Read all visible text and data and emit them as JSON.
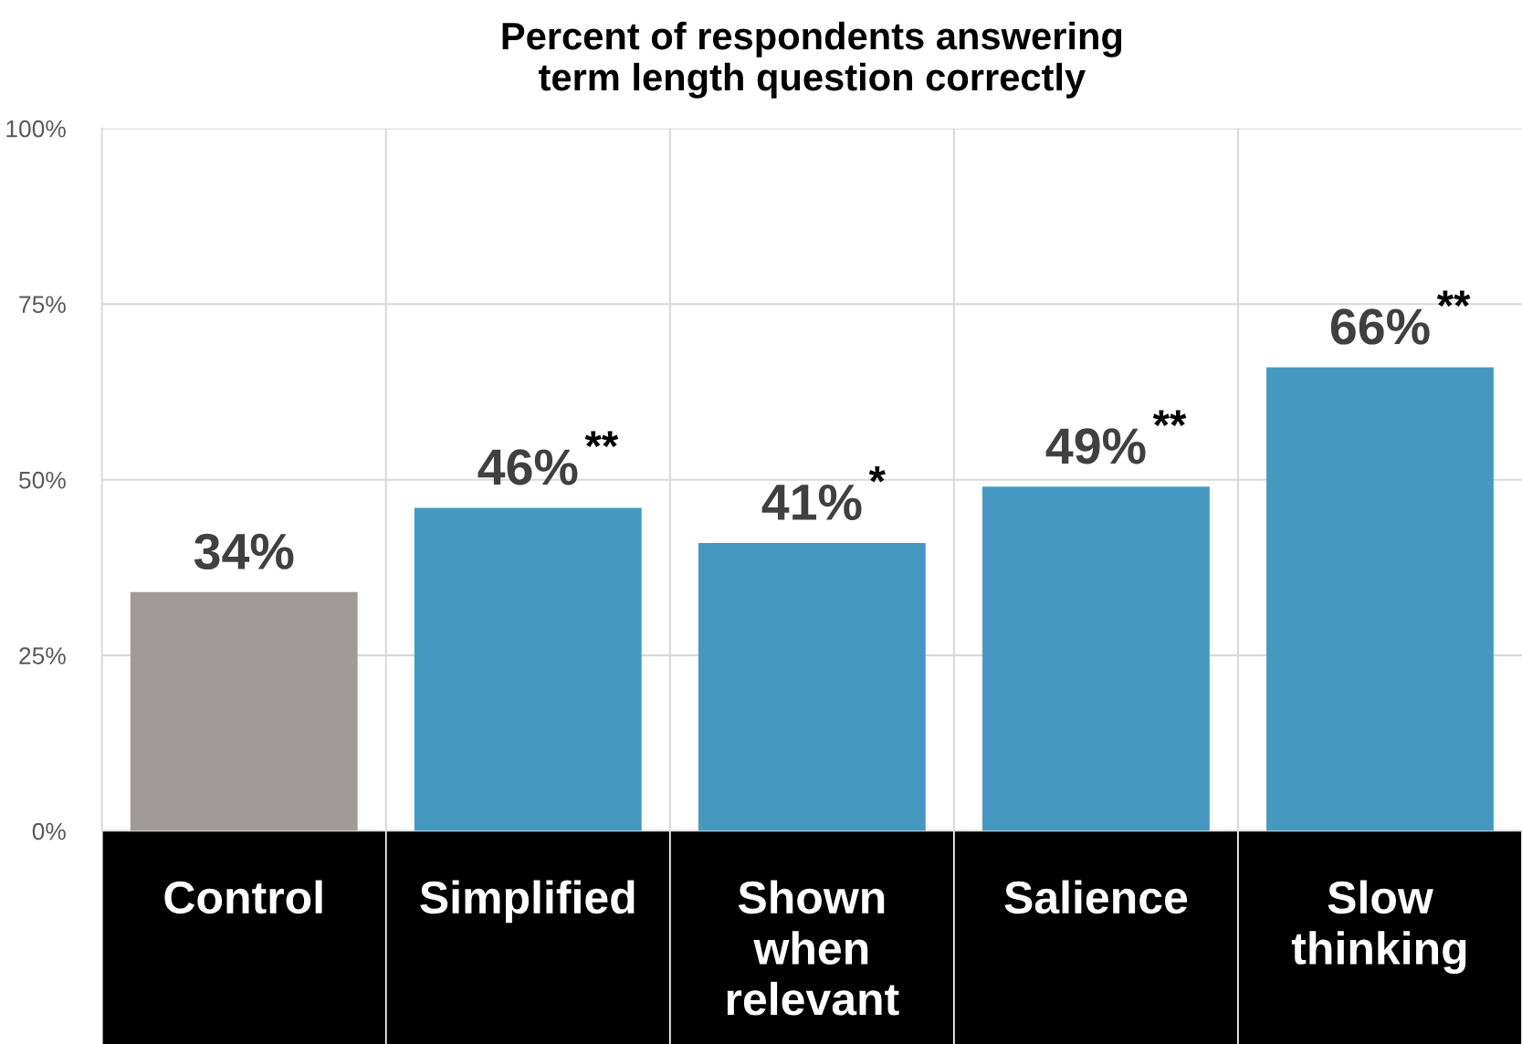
{
  "chart_data": {
    "type": "bar",
    "title": "Percent of respondents answering\nterm length question correctly",
    "categories": [
      "Control",
      "Simplified",
      "Shown\nwhen\nrelevant",
      "Salience",
      "Slow\nthinking"
    ],
    "values": [
      34,
      46,
      41,
      49,
      66
    ],
    "colors": [
      "#a09a98",
      "#4599c0",
      "#4599c0",
      "#4599c0",
      "#4599c0"
    ],
    "value_labels": [
      "34%",
      "46%",
      "41%",
      "49%",
      "66%"
    ],
    "annotations": [
      {
        "text": "**",
        "x": "Simplified",
        "y": 46
      },
      {
        "text": "*",
        "x": "Shown\nwhen\nrelevant",
        "y": 41
      },
      {
        "text": "**",
        "x": "Salience",
        "y": 49
      },
      {
        "text": "**",
        "x": "Slow\nthinking",
        "y": 66
      }
    ],
    "ylim": [
      0,
      100
    ],
    "yticks": [
      {
        "value": 0,
        "label": "0%"
      },
      {
        "value": 25,
        "label": "25%"
      },
      {
        "value": 50,
        "label": "50%"
      },
      {
        "value": 75,
        "label": "75%"
      },
      {
        "value": 100,
        "label": "100%"
      }
    ],
    "grid": true,
    "legend": false
  }
}
